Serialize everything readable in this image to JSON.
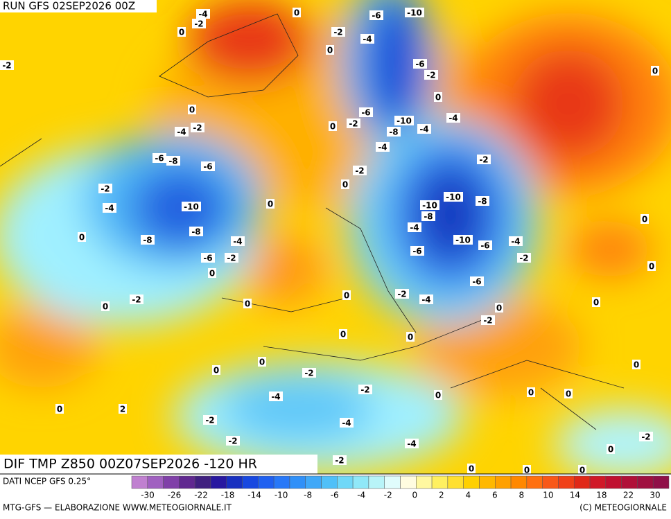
{
  "header": {
    "run": "RUN GFS 02SEP2026 00Z"
  },
  "map": {
    "field_label": "DIF TMP Z850 00Z07SEP2026 -120 HR",
    "contour_labels": [
      -4,
      0,
      -2,
      0,
      -2,
      0,
      -4,
      -6,
      -10,
      -6,
      -2,
      0,
      -2,
      0,
      0,
      -4,
      -2,
      -6,
      -8,
      -6,
      -6,
      -10,
      -8,
      -4,
      -4,
      0,
      -2,
      -4,
      -2,
      -2,
      0,
      -2,
      -4,
      -10,
      0,
      -10,
      -10,
      -8,
      -8,
      -4,
      -8,
      -8,
      -4,
      0,
      -10,
      -6,
      -6,
      -4,
      -6,
      -2,
      -2,
      0,
      0,
      0,
      -6,
      -2,
      0,
      0,
      -2,
      -4,
      0,
      0,
      -2,
      0,
      0,
      0,
      0,
      -2,
      0,
      0,
      -2,
      0,
      -4,
      0,
      0,
      0,
      2,
      -2,
      -4,
      -2,
      -4,
      -2,
      0,
      -2,
      0,
      0,
      0
    ]
  },
  "legend": {
    "source": "DATI NCEP GFS 0.25°",
    "colors": [
      "#c080d0",
      "#a060c0",
      "#8040a8",
      "#602890",
      "#402080",
      "#2818a0",
      "#1830c0",
      "#1848e0",
      "#2060f0",
      "#2878f8",
      "#3090f8",
      "#40a8f8",
      "#50c0f8",
      "#70d8f8",
      "#90e8f8",
      "#b8f4f8",
      "#e0fcfc",
      "#fffce0",
      "#fff8a0",
      "#fff060",
      "#ffe030",
      "#ffd000",
      "#ffb800",
      "#ffa000",
      "#ff8800",
      "#ff7010",
      "#f85818",
      "#f04018",
      "#e02818",
      "#d01828",
      "#c01030",
      "#b01038",
      "#a01040",
      "#901048"
    ],
    "ticks": [
      -30,
      -26,
      -22,
      -18,
      -14,
      -10,
      -8,
      -6,
      -4,
      -2,
      0,
      2,
      4,
      6,
      8,
      10,
      14,
      18,
      22,
      30
    ]
  },
  "footer": {
    "left": "MTG-GFS — ELABORAZIONE WWW.METEOGIORNALE.IT",
    "right": "(C) METEOGIORNALE"
  }
}
